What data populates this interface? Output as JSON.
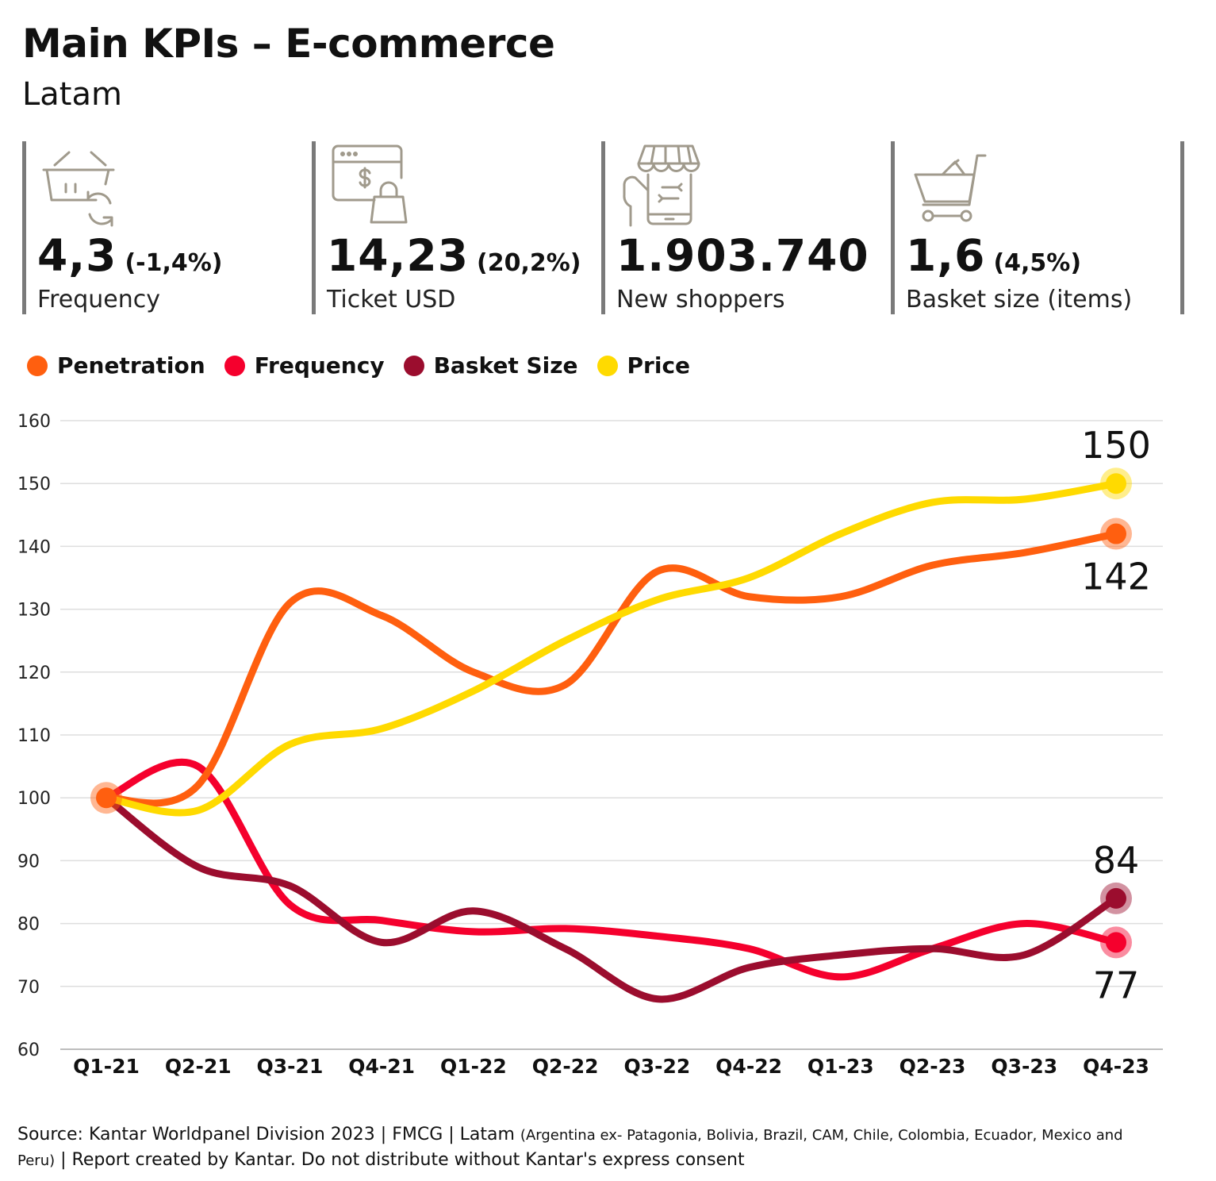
{
  "header": {
    "title": "Main KPIs – E-commerce",
    "subtitle": "Latam"
  },
  "kpis": [
    {
      "value": "4,3",
      "change": "(-1,4%)",
      "label": "Frequency",
      "icon": "basket-refresh-icon"
    },
    {
      "value": "14,23",
      "change": "(20,2%)",
      "label": "Ticket USD",
      "icon": "browser-price-bag-icon"
    },
    {
      "value": "1.903.740",
      "change": "",
      "label": "New shoppers",
      "icon": "online-store-phone-icon"
    },
    {
      "value": "1,6",
      "change": "(4,5%)",
      "label": "Basket size (items)",
      "icon": "shopping-cart-icon"
    }
  ],
  "footer": {
    "main": "Source: Kantar Worldpanel Division 2023 | FMCG | Latam ",
    "countries": "(Argentina ex- Patagonia, Bolivia, Brazil, CAM, Chile, Colombia, Ecuador, Mexico and Peru)",
    "tail": " | Report created by Kantar. Do not distribute without Kantar's express consent"
  },
  "chart_data": {
    "type": "line",
    "categories": [
      "Q1-21",
      "Q2-21",
      "Q3-21",
      "Q4-21",
      "Q1-22",
      "Q2-22",
      "Q3-22",
      "Q4-22",
      "Q1-23",
      "Q2-23",
      "Q3-23",
      "Q4-23"
    ],
    "ylim": [
      60,
      160
    ],
    "yticks": [
      60,
      70,
      80,
      90,
      100,
      110,
      120,
      130,
      140,
      150,
      160
    ],
    "grid": true,
    "legend_position": "top-left",
    "series": [
      {
        "name": "Penetration",
        "color": "#FF5F0F",
        "values": [
          100,
          102,
          131,
          129,
          120,
          118,
          136,
          132,
          132,
          137,
          139,
          142
        ]
      },
      {
        "name": "Frequency",
        "color": "#F5002D",
        "values": [
          100,
          105,
          83,
          80.5,
          78.7,
          79.2,
          78,
          76,
          71.5,
          76,
          80,
          77
        ]
      },
      {
        "name": "Basket Size",
        "color": "#9B0D2E",
        "values": [
          100,
          89,
          86,
          77,
          82,
          76,
          68,
          73,
          75,
          76,
          75,
          84
        ]
      },
      {
        "name": "Price",
        "color": "#FFDA00",
        "values": [
          100,
          98,
          108.5,
          111,
          117,
          125,
          131.5,
          135,
          142,
          147,
          147.5,
          150
        ]
      }
    ],
    "end_labels": [
      {
        "series": "Price",
        "text": "150",
        "position": "above"
      },
      {
        "series": "Penetration",
        "text": "142",
        "position": "below"
      },
      {
        "series": "Basket Size",
        "text": "84",
        "position": "above"
      },
      {
        "series": "Frequency",
        "text": "77",
        "position": "below"
      }
    ]
  }
}
